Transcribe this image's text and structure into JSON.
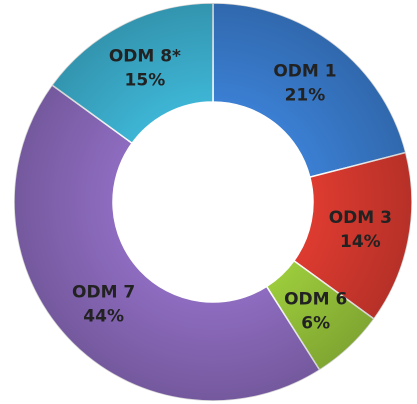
{
  "chart_data": {
    "type": "donut",
    "categories": [
      "ODM 1",
      "ODM 3",
      "ODM 6",
      "ODM 7",
      "ODM 8*"
    ],
    "values": [
      21,
      14,
      6,
      44,
      15
    ],
    "value_labels": [
      "21%",
      "14%",
      "6%",
      "44%",
      "15%"
    ],
    "colors": [
      "#3b7fd3",
      "#de3b30",
      "#9ccb3c",
      "#8e6cc0",
      "#3eb5d5"
    ]
  }
}
